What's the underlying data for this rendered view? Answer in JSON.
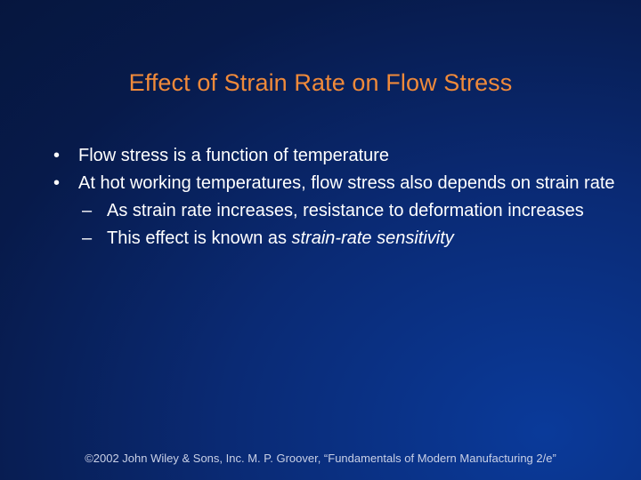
{
  "slide": {
    "title": "Effect of Strain Rate on Flow Stress",
    "bullets": [
      {
        "marker": "•",
        "text": "Flow stress is a function of temperature"
      },
      {
        "marker": "•",
        "text": "At hot working temperatures, flow stress also depends on strain rate"
      }
    ],
    "sub_bullets": [
      {
        "marker": "–",
        "text": "As strain rate increases, resistance to deformation increases"
      },
      {
        "marker": "–",
        "text_prefix": "This effect is known as ",
        "text_emphasis": "strain‑rate sensitivity"
      }
    ],
    "footer": "©2002 John Wiley & Sons, Inc.  M. P. Groover, “Fundamentals of Modern Manufacturing 2/e”"
  },
  "colors": {
    "title": "#f08a3a",
    "text": "#ffffff",
    "background_dark": "#06163d",
    "background_light": "#0a3a9a"
  }
}
